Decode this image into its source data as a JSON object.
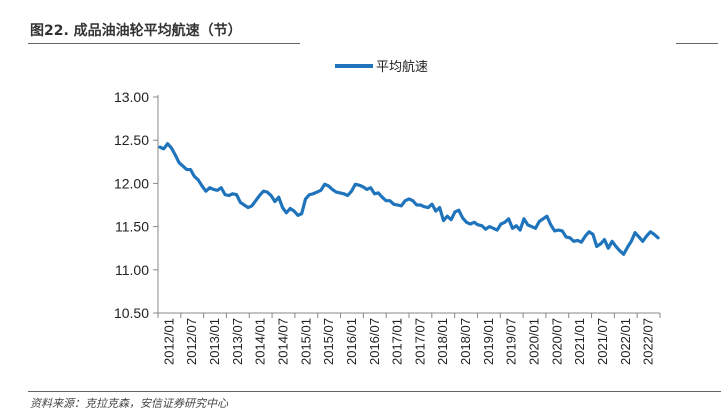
{
  "header": {
    "title": "图22. 成品油油轮平均航速（节）"
  },
  "footer": {
    "source": "资料来源：克拉克森，安信证券研究中心"
  },
  "chart_data": {
    "type": "line",
    "title": "",
    "xlabel": "",
    "ylabel": "",
    "ylim": [
      10.5,
      13.0
    ],
    "yticks": [
      "10.50",
      "11.00",
      "11.50",
      "12.00",
      "12.50",
      "13.00"
    ],
    "x_tick_labels": [
      "2012/01",
      "2012/07",
      "2013/01",
      "2013/07",
      "2014/01",
      "2014/07",
      "2015/01",
      "2015/07",
      "2016/01",
      "2016/07",
      "2017/01",
      "2017/07",
      "2018/01",
      "2018/07",
      "2019/01",
      "2019/07",
      "2020/01",
      "2020/07",
      "2021/01",
      "2021/07",
      "2022/01",
      "2022/07"
    ],
    "legend": {
      "position": "top-center"
    },
    "grid": false,
    "color": "#1F74BC",
    "series": [
      {
        "name": "平均航速",
        "x": [
          "2012/01",
          "2012/02",
          "2012/03",
          "2012/04",
          "2012/05",
          "2012/06",
          "2012/07",
          "2012/08",
          "2012/09",
          "2012/10",
          "2012/11",
          "2012/12",
          "2013/01",
          "2013/02",
          "2013/03",
          "2013/04",
          "2013/05",
          "2013/06",
          "2013/07",
          "2013/08",
          "2013/09",
          "2013/10",
          "2013/11",
          "2013/12",
          "2014/01",
          "2014/02",
          "2014/03",
          "2014/04",
          "2014/05",
          "2014/06",
          "2014/07",
          "2014/08",
          "2014/09",
          "2014/10",
          "2014/11",
          "2014/12",
          "2015/01",
          "2015/02",
          "2015/03",
          "2015/04",
          "2015/05",
          "2015/06",
          "2015/07",
          "2015/08",
          "2015/09",
          "2015/10",
          "2015/11",
          "2015/12",
          "2016/01",
          "2016/02",
          "2016/03",
          "2016/04",
          "2016/05",
          "2016/06",
          "2016/07",
          "2016/08",
          "2016/09",
          "2016/10",
          "2016/11",
          "2016/12",
          "2017/01",
          "2017/02",
          "2017/03",
          "2017/04",
          "2017/05",
          "2017/06",
          "2017/07",
          "2017/08",
          "2017/09",
          "2017/10",
          "2017/11",
          "2017/12",
          "2018/01",
          "2018/02",
          "2018/03",
          "2018/04",
          "2018/05",
          "2018/06",
          "2018/07",
          "2018/08",
          "2018/09",
          "2018/10",
          "2018/11",
          "2018/12",
          "2019/01",
          "2019/02",
          "2019/03",
          "2019/04",
          "2019/05",
          "2019/06",
          "2019/07",
          "2019/08",
          "2019/09",
          "2019/10",
          "2019/11",
          "2019/12",
          "2020/01",
          "2020/02",
          "2020/03",
          "2020/04",
          "2020/05",
          "2020/06",
          "2020/07",
          "2020/08",
          "2020/09",
          "2020/10",
          "2020/11",
          "2020/12",
          "2021/01",
          "2021/02",
          "2021/03",
          "2021/04",
          "2021/05",
          "2021/06",
          "2021/07",
          "2021/08",
          "2021/09",
          "2021/10",
          "2021/11",
          "2021/12",
          "2022/01",
          "2022/02",
          "2022/03",
          "2022/04",
          "2022/05",
          "2022/06",
          "2022/07",
          "2022/08",
          "2022/09",
          "2022/10",
          "2022/11"
        ],
        "values": [
          12.42,
          12.4,
          12.46,
          12.41,
          12.33,
          12.24,
          12.2,
          12.16,
          12.16,
          12.08,
          12.04,
          11.97,
          11.91,
          11.95,
          11.93,
          11.92,
          11.95,
          11.87,
          11.86,
          11.88,
          11.87,
          11.78,
          11.75,
          11.72,
          11.74,
          11.8,
          11.86,
          11.91,
          11.9,
          11.86,
          11.79,
          11.84,
          11.72,
          11.66,
          11.71,
          11.68,
          11.63,
          11.65,
          11.82,
          11.87,
          11.88,
          11.9,
          11.92,
          11.99,
          11.97,
          11.93,
          11.9,
          11.89,
          11.88,
          11.86,
          11.91,
          11.99,
          11.98,
          11.96,
          11.93,
          11.95,
          11.88,
          11.89,
          11.84,
          11.8,
          11.8,
          11.76,
          11.75,
          11.74,
          11.8,
          11.82,
          11.8,
          11.75,
          11.75,
          11.73,
          11.72,
          11.76,
          11.68,
          11.72,
          11.57,
          11.62,
          11.58,
          11.67,
          11.69,
          11.6,
          11.55,
          11.53,
          11.55,
          11.52,
          11.51,
          11.47,
          11.5,
          11.48,
          11.46,
          11.53,
          11.55,
          11.59,
          11.48,
          11.51,
          11.46,
          11.59,
          11.52,
          11.5,
          11.48,
          11.56,
          11.59,
          11.62,
          11.52,
          11.45,
          11.46,
          11.45,
          11.38,
          11.37,
          11.33,
          11.34,
          11.32,
          11.39,
          11.44,
          11.41,
          11.27,
          11.3,
          11.35,
          11.25,
          11.33,
          11.27,
          11.22,
          11.18,
          11.26,
          11.33,
          11.43,
          11.38,
          11.33,
          11.39,
          11.44,
          11.41,
          11.37
        ]
      }
    ]
  }
}
